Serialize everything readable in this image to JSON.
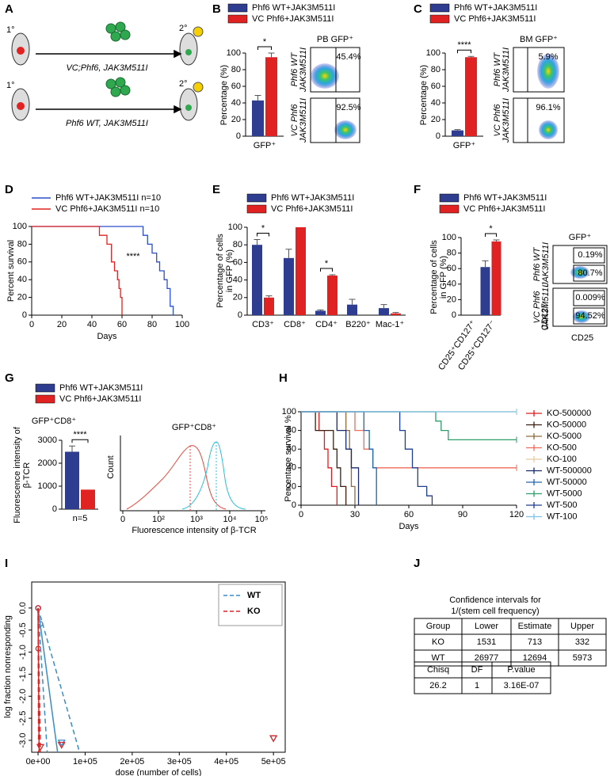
{
  "panel_labels": [
    "A",
    "B",
    "C",
    "D",
    "E",
    "F",
    "G",
    "H",
    "I",
    "J"
  ],
  "schematic": {
    "generations": [
      "1°",
      "2°",
      "1°",
      "2°"
    ],
    "transplants": [
      "VC;Phf6,  JAK3M511I",
      "Phf6 WT, JAK3M511I"
    ]
  },
  "chart_data": [
    {
      "type": "bar",
      "ylabel": [
        "Percentage (%)"
      ],
      "categories": [
        "GFP⁺"
      ],
      "series": [
        {
          "name": "Phf6 WT+JAK3M511I",
          "color": "#2e3d8f",
          "values": [
            43
          ],
          "errors": [
            6
          ]
        },
        {
          "name": "VC Phf6+JAK3M511I",
          "color": "#e02222",
          "values": [
            95
          ],
          "errors": [
            5
          ]
        }
      ],
      "ylim": [
        0,
        100
      ],
      "yticks": [
        0,
        20,
        40,
        60,
        80,
        100
      ],
      "annotations": [
        "*"
      ]
    },
    {
      "type": "bar",
      "ylabel": [
        "Percentage (%)"
      ],
      "categories": [
        "GFP⁺"
      ],
      "series": [
        {
          "name": "Phf6 WT+JAK3M511I",
          "color": "#2e3d8f",
          "values": [
            7
          ],
          "errors": [
            1
          ]
        },
        {
          "name": "VC Phf6+JAK3M511I",
          "color": "#e02222",
          "values": [
            95
          ],
          "errors": [
            1
          ]
        }
      ],
      "ylim": [
        0,
        100
      ],
      "yticks": [
        0,
        20,
        40,
        60,
        80,
        100
      ],
      "annotations": [
        "****"
      ]
    },
    {
      "type": "step",
      "ylabel": [
        "Percent survival"
      ],
      "xlabel": "Days",
      "series": [
        {
          "name": "Phf6 WT+JAK3M511I n=10",
          "color": "#2b4fc9",
          "x": [
            0,
            74,
            77,
            80,
            83,
            85,
            88,
            90,
            92,
            94
          ],
          "values": [
            100,
            90,
            80,
            70,
            60,
            50,
            40,
            30,
            10,
            0
          ]
        },
        {
          "name": "VC Phf6+JAK3M511I n=10",
          "color": "#e02222",
          "x": [
            0,
            45,
            50,
            53,
            55,
            57,
            58,
            59,
            60
          ],
          "values": [
            100,
            90,
            80,
            60,
            50,
            40,
            30,
            20,
            0
          ]
        }
      ],
      "xlim": [
        0,
        100
      ],
      "xticks": [
        0,
        20,
        40,
        60,
        80,
        100
      ],
      "ylim": [
        0,
        100
      ],
      "yticks": [
        0,
        20,
        40,
        60,
        80,
        100
      ],
      "annotations": [
        "****"
      ]
    },
    {
      "type": "bar",
      "ylabel": [
        "Percentage of cells",
        "in GFP (%)"
      ],
      "categories": [
        "CD3⁺",
        "CD8⁺",
        "CD4⁺",
        "B220⁺",
        "Mac-1⁺"
      ],
      "series": [
        {
          "name": "Phf6 WT+JAK3M511I",
          "color": "#2e3d8f",
          "values": [
            80,
            65,
            5,
            12,
            8
          ],
          "errors": [
            6,
            10,
            1,
            6,
            4
          ]
        },
        {
          "name": "VC Phf6+JAK3M511I",
          "color": "#e02222",
          "values": [
            20,
            100,
            45,
            0,
            2
          ],
          "errors": [
            2,
            0,
            1,
            0,
            1
          ]
        }
      ],
      "ylim": [
        0,
        100
      ],
      "yticks": [
        0,
        20,
        40,
        60,
        80,
        100
      ],
      "annotations": [
        "*",
        "*"
      ]
    },
    {
      "type": "bar",
      "ylabel": [
        "Percentage of cells",
        "in GFP (%)"
      ],
      "categories": [
        "CD25⁺CD127⁺",
        "CD25⁺CD127⁻"
      ],
      "series": [
        {
          "name": "Phf6 WT+JAK3M511I",
          "color": "#2e3d8f",
          "values": [
            0,
            62
          ],
          "errors": [
            0,
            8
          ]
        },
        {
          "name": "VC Phf6+JAK3M511I",
          "color": "#e02222",
          "values": [
            0,
            95
          ],
          "errors": [
            0,
            2
          ]
        }
      ],
      "ylim": [
        0,
        100
      ],
      "yticks": [
        0,
        20,
        40,
        60,
        80,
        100
      ],
      "annotations": [
        "*"
      ]
    },
    {
      "type": "bar",
      "title": "GFP⁺CD8⁺",
      "ylabel": [
        "Fluorescence intensity of",
        "β-TCR"
      ],
      "categories": [
        "n=5"
      ],
      "series": [
        {
          "name": "Phf6 WT+JAK3M511I",
          "color": "#2e3d8f",
          "values": [
            2500
          ],
          "errors": [
            250
          ]
        },
        {
          "name": "VC Phf6+JAK3M511I",
          "color": "#e02222",
          "values": [
            850
          ],
          "errors": [
            0
          ]
        }
      ],
      "ylim": [
        0,
        3000
      ],
      "yticks": [
        0,
        1000,
        2000,
        3000
      ],
      "annotations": [
        "****"
      ]
    },
    {
      "type": "step",
      "ylabel": [
        "Percentage survival %"
      ],
      "xlabel": "Days",
      "xlim": [
        0,
        120
      ],
      "xticks": [
        0,
        30,
        60,
        90,
        120
      ],
      "ylim": [
        0,
        100
      ],
      "yticks": [
        0,
        20,
        40,
        60,
        80,
        100
      ],
      "series": [
        {
          "name": "KO-500000",
          "color": "#e41a1c",
          "x": [
            0,
            10,
            13,
            15,
            17,
            20
          ],
          "values": [
            100,
            80,
            60,
            40,
            20,
            0
          ]
        },
        {
          "name": "KO-50000",
          "color": "#3d1f12",
          "x": [
            0,
            8,
            18,
            20,
            22,
            25
          ],
          "values": [
            100,
            80,
            60,
            40,
            20,
            0
          ]
        },
        {
          "name": "KO-5000",
          "color": "#8c6b3e",
          "x": [
            0,
            25,
            27,
            28,
            30
          ],
          "values": [
            100,
            80,
            60,
            20,
            0
          ]
        },
        {
          "name": "KO-500",
          "color": "#ef6b5a",
          "x": [
            0,
            30,
            35,
            40,
            120
          ],
          "values": [
            100,
            80,
            60,
            40,
            40
          ]
        },
        {
          "name": "KO-100",
          "color": "#e8c9a0",
          "x": [
            0,
            120
          ],
          "values": [
            100,
            100
          ]
        },
        {
          "name": "WT-500000",
          "color": "#1a2a6c",
          "x": [
            0,
            20,
            25,
            28,
            32
          ],
          "values": [
            100,
            80,
            60,
            40,
            0
          ]
        },
        {
          "name": "WT-50000",
          "color": "#2166ac",
          "x": [
            0,
            35,
            38,
            40,
            42
          ],
          "values": [
            100,
            80,
            60,
            40,
            0
          ]
        },
        {
          "name": "WT-5000",
          "color": "#2e9e6b",
          "x": [
            0,
            75,
            78,
            82,
            120
          ],
          "values": [
            100,
            90,
            80,
            70,
            70
          ]
        },
        {
          "name": "WT-500",
          "color": "#1f3f8f",
          "x": [
            0,
            55,
            58,
            62,
            65,
            70,
            73
          ],
          "values": [
            100,
            80,
            60,
            40,
            20,
            10,
            0
          ]
        },
        {
          "name": "WT-100",
          "color": "#7fc3e8",
          "x": [
            0,
            120
          ],
          "values": [
            100,
            100
          ]
        }
      ]
    },
    {
      "type": "scatter",
      "ylabel": [
        "log fraction nonresponding"
      ],
      "xlabel": "dose (number of cells)",
      "xlim": [
        -13500,
        525000
      ],
      "xticks": [
        {
          "value": 0,
          "label": "0e+00"
        },
        {
          "value": 100000,
          "label": "1e+05"
        },
        {
          "value": 200000,
          "label": "2e+05"
        },
        {
          "value": 300000,
          "label": "3e+05"
        },
        {
          "value": 400000,
          "label": "4e+05"
        },
        {
          "value": 500000,
          "label": "5e+05"
        }
      ],
      "ylim": [
        -3.27,
        0.59
      ],
      "yticks": [
        {
          "value": -3,
          "label": "-3.0"
        },
        {
          "value": -2.5,
          "label": "-2.5"
        },
        {
          "value": -2,
          "label": "-2.0"
        },
        {
          "value": -1.5,
          "label": "-1.5"
        },
        {
          "value": -1,
          "label": "-1.0"
        },
        {
          "value": -0.5,
          "label": "-0.5"
        },
        {
          "value": 0,
          "label": "0.0"
        }
      ],
      "series": [
        {
          "name": "WT",
          "color": "#3b8bc4",
          "marker": "circle",
          "x": [
            100,
            500,
            5000
          ],
          "values": [
            0,
            0,
            -0.36
          ]
        },
        {
          "name": "KO",
          "color": "#d62728",
          "marker": "circle",
          "x": [
            100,
            500
          ],
          "values": [
            0,
            -0.92
          ]
        },
        {
          "color": "#3b8bc4",
          "marker": "triangle",
          "x": [
            50000,
            500000
          ],
          "values": [
            -3.05,
            -2.95
          ]
        },
        {
          "color": "#d62728",
          "marker": "triangle",
          "x": [
            5000,
            50000,
            500000
          ],
          "values": [
            -3.15,
            -3.1,
            -2.95
          ]
        },
        {
          "color": "#3b8bc4",
          "marker": "line",
          "dash": false,
          "x": [
            0,
            41500
          ],
          "values": [
            0,
            -3.27
          ]
        },
        {
          "color": "#3b8bc4",
          "marker": "line",
          "dash": true,
          "x": [
            0,
            88200
          ],
          "values": [
            0,
            -3.27
          ]
        },
        {
          "color": "#3b8bc4",
          "marker": "line",
          "dash": true,
          "x": [
            0,
            19530
          ],
          "values": [
            0,
            -3.27
          ]
        },
        {
          "color": "#d62728",
          "marker": "line",
          "dash": false,
          "x": [
            0,
            2330
          ],
          "values": [
            0,
            -3.27
          ]
        },
        {
          "color": "#d62728",
          "marker": "line",
          "dash": true,
          "x": [
            0,
            5006
          ],
          "values": [
            0,
            -3.27
          ]
        },
        {
          "color": "#d62728",
          "marker": "line",
          "dash": true,
          "x": [
            0,
            1086
          ],
          "values": [
            0,
            -3.27
          ]
        }
      ]
    }
  ],
  "flow": [
    {
      "title": "PB GFP⁺",
      "rows": [
        {
          "label": [
            "Phf6 WT",
            "JAK3M511I"
          ],
          "percent": [
            "45.4%"
          ]
        },
        {
          "label": [
            "VC Phf6",
            "JAK3M511I"
          ],
          "percent": [
            "92.5%"
          ]
        }
      ]
    },
    {
      "title": "BM GFP⁺",
      "rows": [
        {
          "label": [
            "Phf6 WT",
            "JAK3M511I"
          ],
          "percent": [
            "5.9%"
          ]
        },
        {
          "label": [
            "VC Phf6",
            "JAK3M511I"
          ],
          "percent": [
            "96.1%"
          ]
        }
      ]
    },
    {
      "title": "GFP⁺",
      "rows": [
        {
          "label": [
            "Phf6 WT",
            "JAK3M511I"
          ],
          "percent": [
            "0.19%",
            "80.7%"
          ]
        },
        {
          "label": [
            "VC Phf6",
            "JAK3M511I"
          ],
          "percent": [
            "0.009%",
            "94.52%"
          ]
        }
      ],
      "axes": [
        "CD127",
        "CD25"
      ]
    }
  ],
  "histogram": {
    "title": "GFP⁺CD8⁺",
    "ylabel": "Count",
    "xlabel": "Fluorescence intensity of β-TCR",
    "xticks": [
      "0",
      "10²",
      "10³",
      "10⁴",
      "10⁵"
    ]
  },
  "table_panel": {
    "title": [
      "Confidence intervals for",
      "1/(stem cell frequency)"
    ],
    "table": {
      "header": [
        "Group",
        "Lower",
        "Estimate",
        "Upper"
      ],
      "rows": [
        [
          "KO",
          1531,
          713,
          332
        ],
        [
          "WT",
          26977,
          12694,
          5973
        ]
      ]
    },
    "test": {
      "header": [
        "Chisq",
        "DF",
        "P.value"
      ],
      "rows": [
        [
          26.2,
          1,
          "3.16E-07"
        ]
      ]
    }
  }
}
